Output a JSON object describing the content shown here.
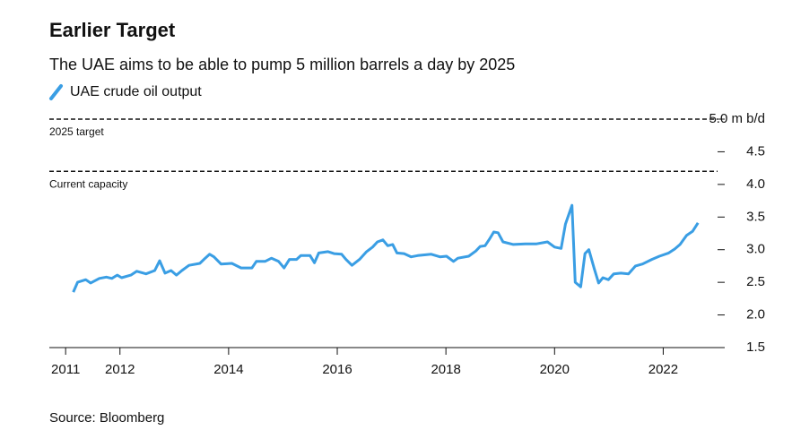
{
  "chart_data": {
    "type": "line",
    "title": "Earlier Target",
    "subtitle": "The UAE aims to be able to pump 5 million barrels a day by 2025",
    "source": "Source: Bloomberg",
    "x": [
      2011.14,
      2011.22,
      2011.37,
      2011.46,
      2011.62,
      2011.75,
      2011.85,
      2011.95,
      2012.03,
      2012.2,
      2012.31,
      2012.48,
      2012.64,
      2012.73,
      2012.83,
      2012.94,
      2013.04,
      2013.14,
      2013.27,
      2013.47,
      2013.57,
      2013.65,
      2013.73,
      2013.86,
      2014.06,
      2014.23,
      2014.43,
      2014.51,
      2014.67,
      2014.79,
      2014.92,
      2015.02,
      2015.12,
      2015.25,
      2015.33,
      2015.5,
      2015.58,
      2015.66,
      2015.83,
      2015.94,
      2016.08,
      2016.16,
      2016.27,
      2016.41,
      2016.54,
      2016.65,
      2016.74,
      2016.84,
      2016.93,
      2017.02,
      2017.1,
      2017.23,
      2017.36,
      2017.48,
      2017.73,
      2017.89,
      2018.01,
      2018.14,
      2018.22,
      2018.42,
      2018.55,
      2018.63,
      2018.72,
      2018.8,
      2018.88,
      2018.96,
      2019.05,
      2019.24,
      2019.46,
      2019.67,
      2019.87,
      2020.0,
      2020.12,
      2020.2,
      2020.32,
      2020.38,
      2020.48,
      2020.56,
      2020.63,
      2020.73,
      2020.81,
      2020.89,
      2020.99,
      2021.09,
      2021.22,
      2021.36,
      2021.49,
      2021.62,
      2021.79,
      2021.93,
      2022.1,
      2022.21,
      2022.31,
      2022.43,
      2022.54,
      2022.64
    ],
    "series": [
      {
        "name": "UAE crude oil output",
        "color": "#3a9ee4",
        "values": [
          2.35,
          2.5,
          2.54,
          2.49,
          2.56,
          2.58,
          2.56,
          2.61,
          2.57,
          2.61,
          2.67,
          2.63,
          2.68,
          2.83,
          2.64,
          2.68,
          2.61,
          2.68,
          2.76,
          2.79,
          2.87,
          2.93,
          2.89,
          2.78,
          2.79,
          2.72,
          2.72,
          2.82,
          2.82,
          2.87,
          2.82,
          2.72,
          2.85,
          2.85,
          2.91,
          2.91,
          2.8,
          2.95,
          2.97,
          2.94,
          2.93,
          2.85,
          2.76,
          2.85,
          2.97,
          3.04,
          3.12,
          3.15,
          3.06,
          3.08,
          2.95,
          2.94,
          2.89,
          2.91,
          2.93,
          2.89,
          2.9,
          2.82,
          2.87,
          2.9,
          2.98,
          3.05,
          3.06,
          3.16,
          3.27,
          3.26,
          3.12,
          3.08,
          3.09,
          3.09,
          3.12,
          3.04,
          3.02,
          3.39,
          3.68,
          2.5,
          2.43,
          2.94,
          3.0,
          2.71,
          2.49,
          2.57,
          2.54,
          2.63,
          2.64,
          2.63,
          2.75,
          2.78,
          2.85,
          2.9,
          2.95,
          3.01,
          3.08,
          3.22,
          3.28,
          3.41
        ]
      }
    ],
    "xlim": [
      2010.7,
      2023
    ],
    "xticks": [
      2011,
      2012,
      2014,
      2016,
      2018,
      2020,
      2022
    ],
    "ylim": [
      1.5,
      5.0
    ],
    "yticks": [
      {
        "value": 1.5,
        "label": "1.5"
      },
      {
        "value": 2,
        "label": "2.0"
      },
      {
        "value": 2.5,
        "label": "2.5"
      },
      {
        "value": 3,
        "label": "3.0"
      },
      {
        "value": 3.5,
        "label": "3.5"
      },
      {
        "value": 4,
        "label": "4.0"
      },
      {
        "value": 4.5,
        "label": "4.5"
      },
      {
        "value": 5,
        "label": "5.0 m b/d"
      }
    ],
    "reference_lines": [
      {
        "value": 5.0,
        "label": "2025 target"
      },
      {
        "value": 4.2,
        "label": "Current capacity"
      }
    ]
  }
}
